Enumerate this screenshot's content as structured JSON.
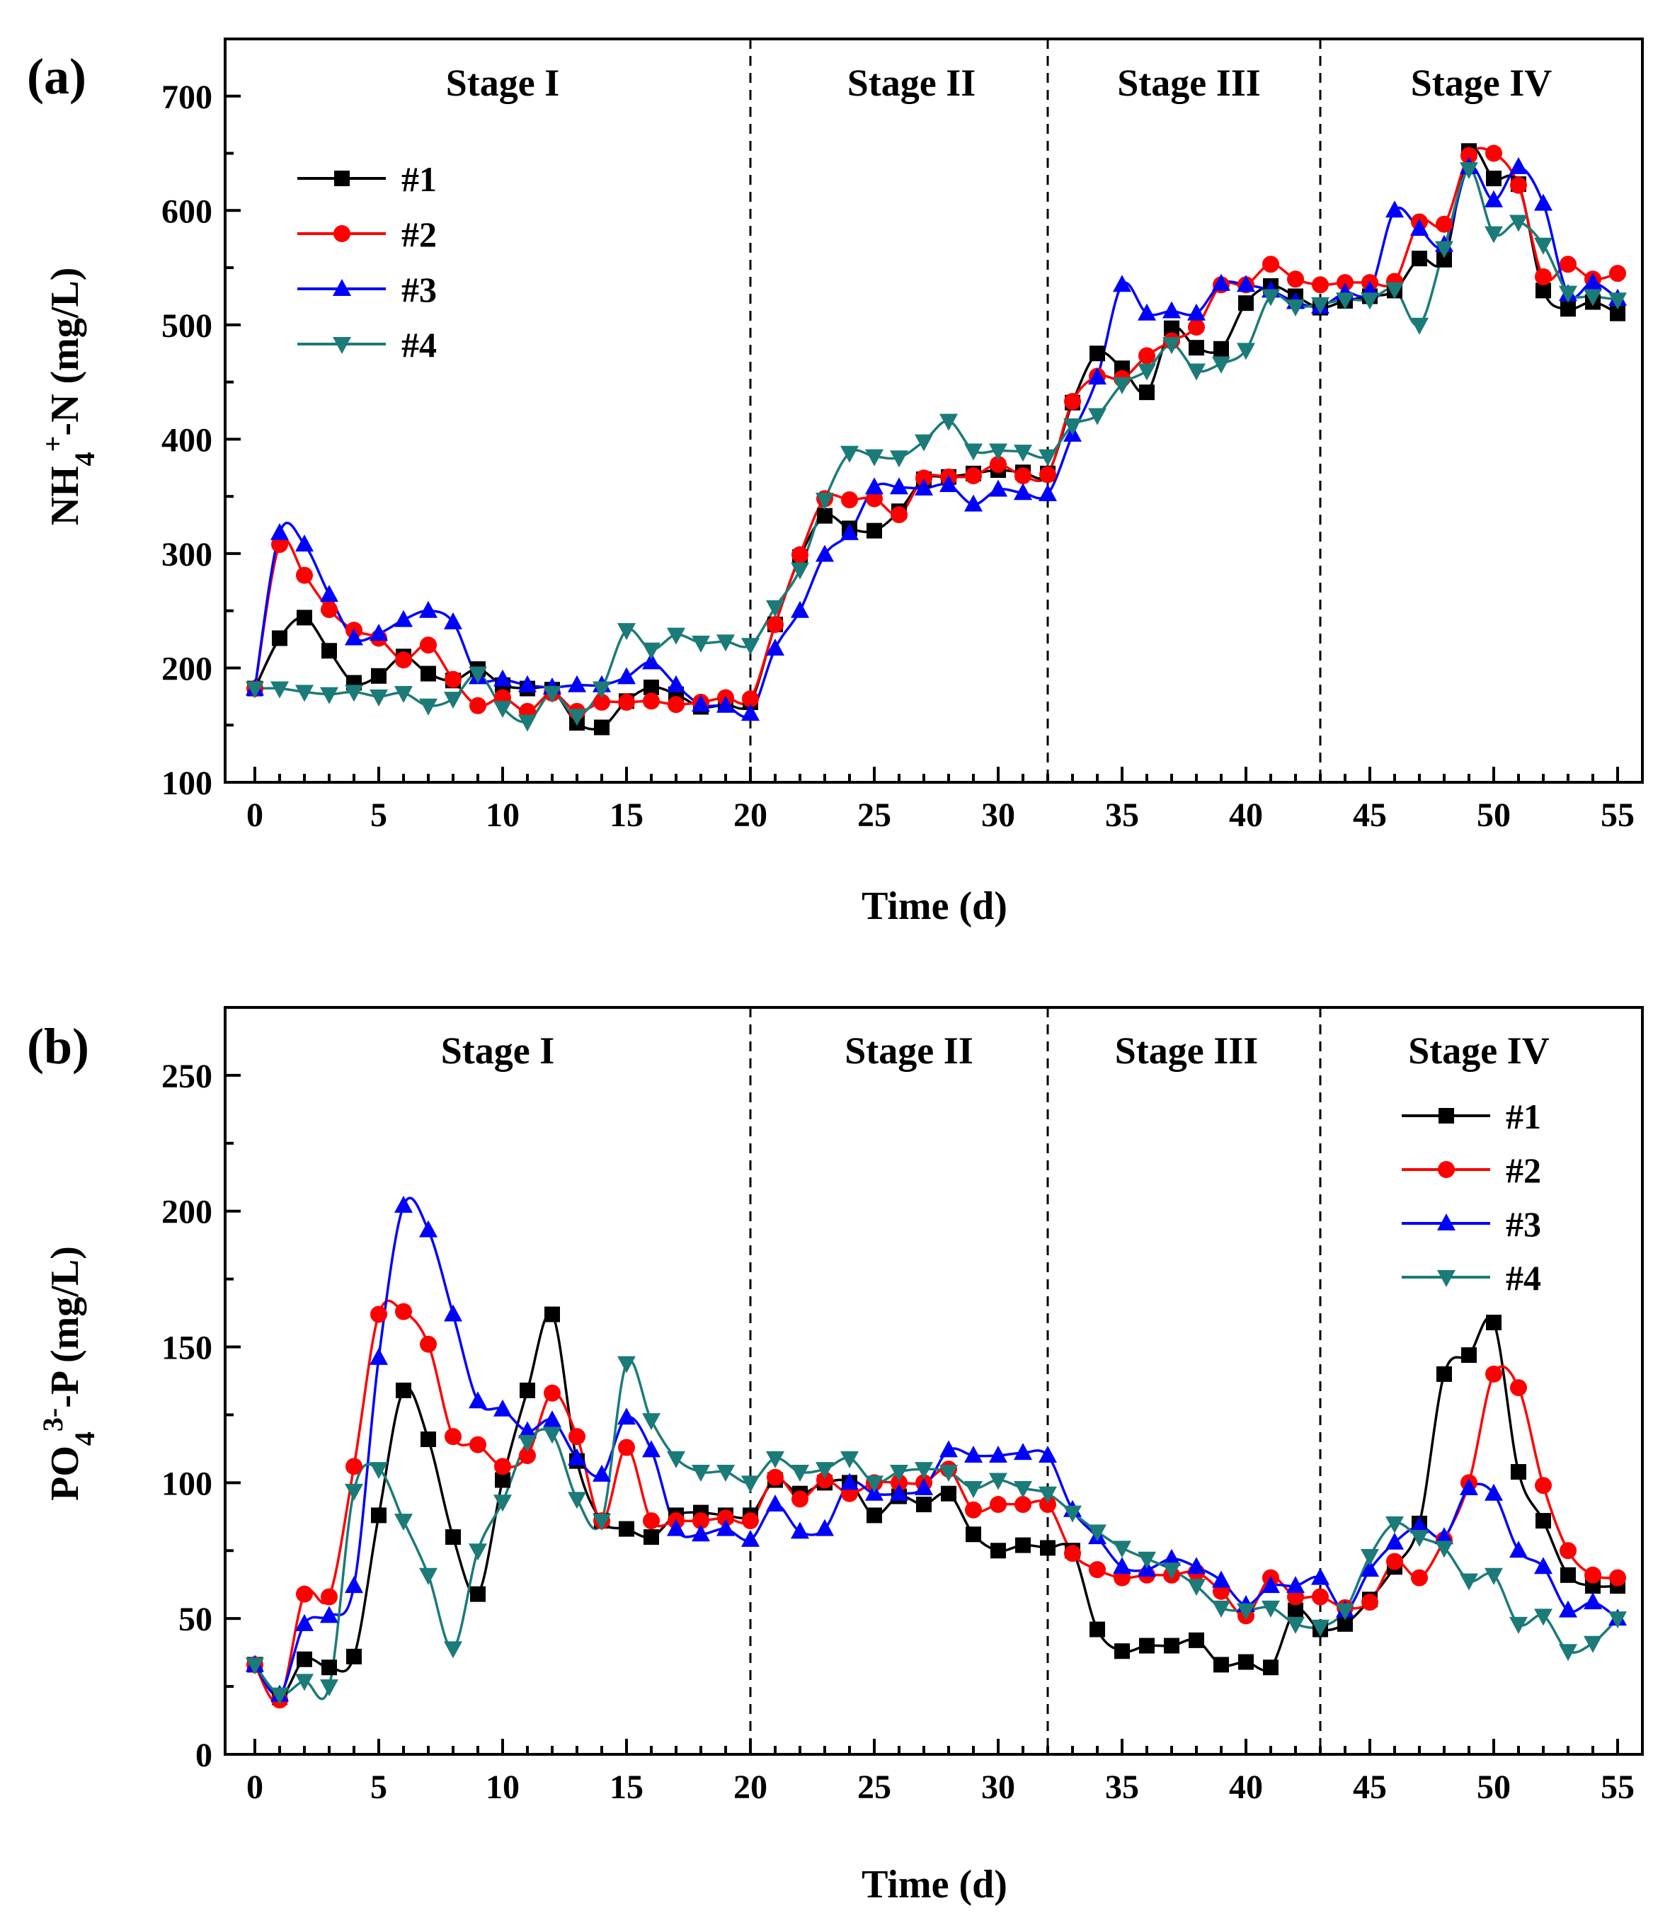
{
  "chart_data": [
    {
      "type": "line",
      "panel": "(a)",
      "xlabel": "Time (d)",
      "ylabel": {
        "base": "NH",
        "sub": "4",
        "sup": "+",
        "rest": "-N (mg/L)"
      },
      "xlim": [
        -1.2,
        56
      ],
      "ylim": [
        100,
        750
      ],
      "xticks": [
        0,
        5,
        10,
        15,
        20,
        25,
        30,
        35,
        40,
        45,
        50,
        55
      ],
      "yticks": [
        100,
        200,
        300,
        400,
        500,
        600,
        700
      ],
      "stage_boundaries": [
        20,
        32,
        43
      ],
      "stages": [
        {
          "label": "Stage I",
          "x": 10
        },
        {
          "label": "Stage II",
          "x": 26.5
        },
        {
          "label": "Stage III",
          "x": 37.7
        },
        {
          "label": "Stage IV",
          "x": 49.5
        }
      ],
      "legend_position": "top-left",
      "x": [
        0,
        1,
        2,
        3,
        4,
        5,
        6,
        7,
        8,
        9,
        10,
        11,
        12,
        13,
        14,
        15,
        16,
        17,
        18,
        19,
        20,
        21,
        22,
        23,
        24,
        25,
        26,
        27,
        28,
        29,
        30,
        31,
        32,
        33,
        34,
        35,
        36,
        37,
        38,
        39,
        40,
        41,
        42,
        43,
        44,
        45,
        46,
        47,
        48,
        49,
        50,
        51,
        52,
        53,
        54,
        55
      ],
      "series": [
        {
          "name": "#1",
          "color": "#000000",
          "marker": "square",
          "values": [
            182,
            226,
            244,
            215,
            187,
            193,
            210,
            195,
            189,
            199,
            185,
            182,
            181,
            152,
            148,
            171,
            183,
            177,
            166,
            168,
            170,
            238,
            297,
            333,
            322,
            320,
            337,
            365,
            367,
            370,
            373,
            371,
            370,
            432,
            475,
            462,
            441,
            497,
            480,
            479,
            519,
            534,
            525,
            515,
            521,
            525,
            530,
            558,
            557,
            652,
            628,
            623,
            530,
            514,
            520,
            510
          ]
        },
        {
          "name": "#2",
          "color": "#ff0000",
          "marker": "circle",
          "values": [
            182,
            308,
            281,
            251,
            233,
            226,
            207,
            220,
            190,
            167,
            174,
            162,
            178,
            162,
            170,
            170,
            171,
            168,
            170,
            174,
            173,
            238,
            299,
            348,
            347,
            348,
            334,
            366,
            367,
            368,
            378,
            368,
            369,
            433,
            455,
            453,
            473,
            486,
            498,
            535,
            535,
            553,
            540,
            535,
            537,
            537,
            538,
            590,
            588,
            648,
            650,
            622,
            542,
            553,
            540,
            545
          ]
        },
        {
          "name": "#3",
          "color": "#0000ff",
          "marker": "triangle-up",
          "values": [
            182,
            318,
            308,
            264,
            226,
            230,
            242,
            250,
            240,
            192,
            190,
            185,
            183,
            185,
            185,
            192,
            205,
            185,
            168,
            167,
            160,
            217,
            250,
            299,
            318,
            358,
            358,
            357,
            360,
            343,
            356,
            353,
            352,
            404,
            454,
            535,
            510,
            512,
            510,
            536,
            535,
            530,
            520,
            516,
            528,
            530,
            600,
            584,
            570,
            638,
            609,
            638,
            606,
            527,
            537,
            523
          ]
        },
        {
          "name": "#4",
          "color": "#1b7b78",
          "marker": "triangle-down",
          "values": [
            182,
            182,
            179,
            177,
            179,
            175,
            178,
            167,
            173,
            195,
            165,
            153,
            178,
            158,
            182,
            233,
            216,
            229,
            222,
            223,
            220,
            253,
            286,
            347,
            388,
            385,
            384,
            398,
            416,
            390,
            390,
            389,
            385,
            412,
            421,
            448,
            460,
            483,
            460,
            466,
            478,
            525,
            516,
            518,
            522,
            522,
            531,
            500,
            567,
            636,
            580,
            590,
            570,
            528,
            525,
            522
          ]
        }
      ]
    },
    {
      "type": "line",
      "panel": "(b)",
      "xlabel": "Time (d)",
      "ylabel": {
        "base": "PO",
        "sub": "4",
        "sup": "3-",
        "rest": "-P (mg/L)"
      },
      "xlim": [
        -1.2,
        56
      ],
      "ylim": [
        0,
        275
      ],
      "xticks": [
        0,
        5,
        10,
        15,
        20,
        25,
        30,
        35,
        40,
        45,
        50,
        55
      ],
      "yticks": [
        0,
        50,
        100,
        150,
        200,
        250
      ],
      "stage_boundaries": [
        20,
        32,
        43
      ],
      "stages": [
        {
          "label": "Stage I",
          "x": 9.8
        },
        {
          "label": "Stage II",
          "x": 26.4
        },
        {
          "label": "Stage III",
          "x": 37.6
        },
        {
          "label": "Stage IV",
          "x": 49.4
        }
      ],
      "legend_position": "right",
      "x": [
        0,
        1,
        2,
        3,
        4,
        5,
        6,
        7,
        8,
        9,
        10,
        11,
        12,
        13,
        14,
        15,
        16,
        17,
        18,
        19,
        20,
        21,
        22,
        23,
        24,
        25,
        26,
        27,
        28,
        29,
        30,
        31,
        32,
        33,
        34,
        35,
        36,
        37,
        38,
        39,
        40,
        41,
        42,
        43,
        44,
        45,
        46,
        47,
        48,
        49,
        50,
        51,
        52,
        53,
        54,
        55
      ],
      "series": [
        {
          "name": "#1",
          "color": "#000000",
          "marker": "square",
          "values": [
            33,
            21,
            35,
            32,
            36,
            88,
            134,
            116,
            80,
            59,
            101,
            134,
            162,
            108,
            86,
            83,
            80,
            88,
            89,
            88,
            88,
            101,
            96,
            100,
            100,
            88,
            95,
            92,
            96,
            81,
            75,
            77,
            76,
            75,
            46,
            38,
            40,
            40,
            42,
            33,
            34,
            32,
            53,
            46,
            48,
            57,
            69,
            85,
            140,
            147,
            159,
            104,
            86,
            66,
            62,
            62
          ]
        },
        {
          "name": "#2",
          "color": "#ff0000",
          "marker": "circle",
          "values": [
            33,
            20,
            59,
            58,
            106,
            162,
            163,
            151,
            117,
            114,
            106,
            110,
            133,
            117,
            86,
            113,
            86,
            86,
            86,
            87,
            86,
            102,
            94,
            101,
            96,
            100,
            100,
            100,
            105,
            90,
            92,
            92,
            92,
            74,
            68,
            65,
            66,
            66,
            67,
            60,
            51,
            65,
            58,
            58,
            54,
            56,
            71,
            65,
            79,
            100,
            140,
            135,
            99,
            75,
            66,
            65
          ]
        },
        {
          "name": "#3",
          "color": "#0000ff",
          "marker": "triangle-up",
          "values": [
            33,
            22,
            48,
            51,
            62,
            146,
            202,
            193,
            162,
            130,
            127,
            119,
            123,
            109,
            103,
            124,
            112,
            83,
            81,
            83,
            79,
            92,
            82,
            83,
            100,
            96,
            96,
            98,
            112,
            110,
            110,
            111,
            110,
            90,
            80,
            69,
            68,
            72,
            69,
            64,
            55,
            62,
            62,
            65,
            53,
            68,
            78,
            84,
            80,
            98,
            96,
            75,
            69,
            53,
            56,
            50
          ]
        },
        {
          "name": "#4",
          "color": "#1b7b78",
          "marker": "triangle-down",
          "values": [
            33,
            22,
            27,
            25,
            97,
            105,
            86,
            66,
            39,
            75,
            93,
            115,
            118,
            94,
            86,
            144,
            123,
            109,
            104,
            104,
            100,
            109,
            104,
            105,
            109,
            100,
            104,
            105,
            104,
            98,
            101,
            98,
            96,
            89,
            82,
            76,
            72,
            68,
            62,
            54,
            53,
            54,
            48,
            47,
            53,
            73,
            85,
            80,
            76,
            64,
            66,
            48,
            51,
            38,
            41,
            50
          ]
        }
      ]
    }
  ]
}
